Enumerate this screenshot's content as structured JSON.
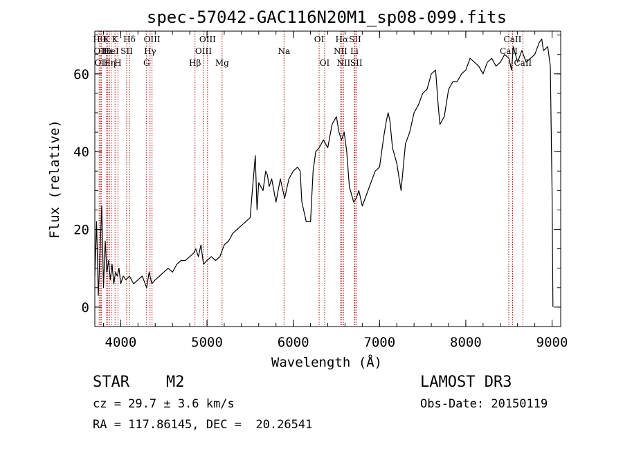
{
  "colors": {
    "spectrum": "#000000",
    "line_marker": "#b40000",
    "axes": "#000000",
    "background": "#ffffff"
  },
  "chart_data": {
    "type": "line",
    "title": "spec-57042-GAC116N20M1_sp08-099.fits",
    "xlabel": "Wavelength (Å)",
    "ylabel": "Flux (relative)",
    "xlim": [
      3700,
      9100
    ],
    "ylim": [
      -5,
      71
    ],
    "xticks": [
      4000,
      5000,
      6000,
      7000,
      8000,
      9000
    ],
    "yticks": [
      0,
      20,
      40,
      60
    ],
    "grid": false,
    "series": [
      {
        "name": "spectrum",
        "x": [
          3700,
          3720,
          3740,
          3760,
          3780,
          3800,
          3820,
          3840,
          3860,
          3880,
          3900,
          3920,
          3940,
          3960,
          3980,
          4000,
          4030,
          4060,
          4100,
          4150,
          4200,
          4250,
          4300,
          4330,
          4360,
          4400,
          4450,
          4500,
          4550,
          4600,
          4650,
          4700,
          4750,
          4800,
          4850,
          4870,
          4900,
          4930,
          4960,
          5000,
          5050,
          5100,
          5150,
          5200,
          5250,
          5300,
          5350,
          5400,
          5450,
          5500,
          5560,
          5580,
          5600,
          5650,
          5680,
          5700,
          5720,
          5750,
          5800,
          5850,
          5900,
          5950,
          6000,
          6050,
          6080,
          6100,
          6130,
          6150,
          6200,
          6230,
          6260,
          6300,
          6350,
          6400,
          6450,
          6500,
          6530,
          6560,
          6590,
          6620,
          6650,
          6700,
          6730,
          6760,
          6800,
          6850,
          6900,
          6950,
          7000,
          7050,
          7080,
          7100,
          7120,
          7150,
          7200,
          7250,
          7300,
          7350,
          7400,
          7450,
          7500,
          7550,
          7600,
          7650,
          7680,
          7700,
          7750,
          7800,
          7850,
          7900,
          7950,
          8000,
          8050,
          8100,
          8150,
          8200,
          8250,
          8300,
          8350,
          8400,
          8450,
          8500,
          8530,
          8550,
          8600,
          8650,
          8700,
          8750,
          8800,
          8850,
          8880,
          8900,
          8950,
          8980,
          9000,
          9010
        ],
        "values": [
          8,
          22,
          3,
          14,
          26,
          5,
          17,
          9,
          12,
          7,
          11,
          6,
          9,
          8,
          10,
          6,
          8,
          7,
          8,
          6,
          7,
          8,
          5,
          9,
          6,
          7,
          8,
          9,
          10,
          9,
          11,
          12,
          12,
          13,
          14,
          15,
          13,
          16,
          11,
          12,
          13,
          12,
          13,
          16,
          17,
          19,
          20,
          21,
          22,
          23,
          39,
          25,
          32,
          30,
          35,
          34,
          31,
          33,
          27,
          33,
          28,
          33,
          35,
          36,
          35,
          27,
          24,
          22,
          22,
          35,
          40,
          41,
          43,
          41,
          47,
          49,
          45,
          43,
          45,
          40,
          31,
          27,
          28,
          30,
          26,
          29,
          32,
          35,
          36,
          44,
          48,
          50,
          48,
          41,
          37,
          30,
          42,
          45,
          50,
          52,
          55,
          56,
          60,
          61,
          52,
          47,
          49,
          56,
          58,
          58,
          60,
          61,
          64,
          63,
          62,
          60,
          63,
          64,
          62,
          63,
          65,
          64,
          61,
          67,
          63,
          66,
          63,
          64,
          65,
          68,
          69,
          66,
          67,
          62,
          30,
          0
        ],
        "color": "#000000"
      }
    ],
    "line_markers": [
      {
        "x": 3750,
        "label": "Hθ",
        "row": 0
      },
      {
        "x": 3765,
        "label": "OII",
        "row": 1
      },
      {
        "x": 3775,
        "label": "OII",
        "row": 2
      },
      {
        "x": 3835,
        "label": "K",
        "row": 0
      },
      {
        "x": 3850,
        "label": "Hε",
        "row": 1
      },
      {
        "x": 3870,
        "label": "Hη",
        "row": 2
      },
      {
        "x": 3889,
        "label": "HeI",
        "row": 1
      },
      {
        "x": 3934,
        "label": "K",
        "row": 0
      },
      {
        "x": 3968,
        "label": "H",
        "row": 2
      },
      {
        "x": 4069,
        "label": "SII",
        "row": 1
      },
      {
        "x": 4101,
        "label": "Hδ",
        "row": 0
      },
      {
        "x": 4300,
        "label": "G",
        "row": 2
      },
      {
        "x": 4340,
        "label": "Hγ",
        "row": 1
      },
      {
        "x": 4363,
        "label": "OIII",
        "row": 0
      },
      {
        "x": 4861,
        "label": "Hβ",
        "row": 2
      },
      {
        "x": 4959,
        "label": "OIII",
        "row": 1
      },
      {
        "x": 5007,
        "label": "OIII",
        "row": 0
      },
      {
        "x": 5175,
        "label": "Mg",
        "row": 2
      },
      {
        "x": 5893,
        "label": "Na",
        "row": 1
      },
      {
        "x": 6300,
        "label": "OI",
        "row": 0
      },
      {
        "x": 6364,
        "label": "OI",
        "row": 2
      },
      {
        "x": 6548,
        "label": "NII",
        "row": 1
      },
      {
        "x": 6563,
        "label": "Hα",
        "row": 0
      },
      {
        "x": 6583,
        "label": "NII",
        "row": 2
      },
      {
        "x": 6708,
        "label": "Li",
        "row": 1
      },
      {
        "x": 6716,
        "label": "SII",
        "row": 0
      },
      {
        "x": 6731,
        "label": "SII",
        "row": 2
      },
      {
        "x": 8498,
        "label": "CaII",
        "row": 1
      },
      {
        "x": 8542,
        "label": "CaII",
        "row": 0
      },
      {
        "x": 8662,
        "label": "CaII",
        "row": 2
      }
    ]
  },
  "info": {
    "object_class": "STAR",
    "subclass": "M2",
    "survey": "LAMOST DR3",
    "redshift": "cz = 29.7 ± 3.6 km/s",
    "obs_date": "Obs-Date: 20150119",
    "coords": "RA = 117.86145, DEC =  20.26541"
  }
}
